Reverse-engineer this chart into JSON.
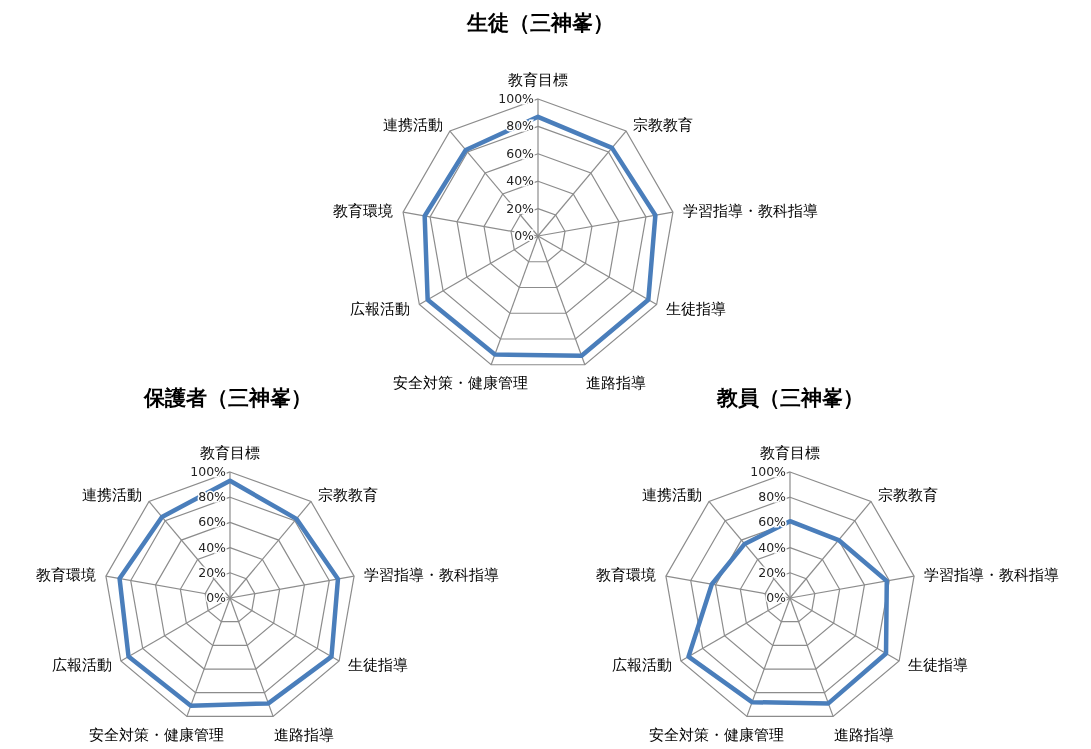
{
  "chart_data": [
    {
      "type": "radar",
      "title": "生徒（三神峯）",
      "categories": [
        "教育目標",
        "宗教教育",
        "学習指導・教科指導",
        "生徒指導",
        "進路指導",
        "安全対策・健康管理",
        "広報活動",
        "教育環境",
        "連携活動"
      ],
      "series": [
        {
          "color": "#4a7ebb",
          "values": [
            87,
            84,
            87,
            93,
            93,
            92,
            93,
            84,
            82
          ]
        }
      ],
      "ylim": [
        0,
        100
      ],
      "yticks": [
        {
          "value": 0,
          "label": "0%"
        },
        {
          "value": 20,
          "label": "20%"
        },
        {
          "value": 40,
          "label": "40%"
        },
        {
          "value": 60,
          "label": "60%"
        },
        {
          "value": 80,
          "label": "80%"
        },
        {
          "value": 100,
          "label": "100%"
        }
      ],
      "grid": true
    },
    {
      "type": "radar",
      "title": "保護者（三神峯）",
      "categories": [
        "教育目標",
        "宗教教育",
        "学習指導・教科指導",
        "生徒指導",
        "進路指導",
        "安全対策・健康管理",
        "広報活動",
        "教育環境",
        "連携活動"
      ],
      "series": [
        {
          "color": "#4a7ebb",
          "values": [
            93,
            82,
            87,
            93,
            89,
            91,
            93,
            89,
            84
          ]
        }
      ],
      "ylim": [
        0,
        100
      ],
      "yticks": [
        {
          "value": 0,
          "label": "0%"
        },
        {
          "value": 20,
          "label": "20%"
        },
        {
          "value": 40,
          "label": "40%"
        },
        {
          "value": 60,
          "label": "60%"
        },
        {
          "value": 80,
          "label": "80%"
        },
        {
          "value": 100,
          "label": "100%"
        }
      ],
      "grid": true
    },
    {
      "type": "radar",
      "title": "教員（三神峯）",
      "categories": [
        "教育目標",
        "宗教教育",
        "学習指導・教科指導",
        "生徒指導",
        "進路指導",
        "安全対策・健康管理",
        "広報活動",
        "教育環境",
        "連携活動"
      ],
      "series": [
        {
          "color": "#4a7ebb",
          "values": [
            61,
            60,
            78,
            88,
            89,
            88,
            93,
            63,
            56
          ]
        }
      ],
      "ylim": [
        0,
        100
      ],
      "yticks": [
        {
          "value": 0,
          "label": "0%"
        },
        {
          "value": 20,
          "label": "20%"
        },
        {
          "value": 40,
          "label": "40%"
        },
        {
          "value": 60,
          "label": "60%"
        },
        {
          "value": 80,
          "label": "80%"
        },
        {
          "value": 100,
          "label": "100%"
        }
      ],
      "grid": true
    }
  ]
}
